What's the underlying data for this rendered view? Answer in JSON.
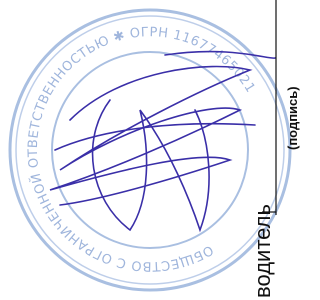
{
  "stamp": {
    "ring_text": "ОБЩЕСТВО С ОГРАНИЧЕННОЙ ОТВЕТСТВЕННОСТЬЮ ✱ ОГРН 11677465021"
  },
  "signature_field": {
    "role": "водитель",
    "caption": "(подпись)"
  }
}
